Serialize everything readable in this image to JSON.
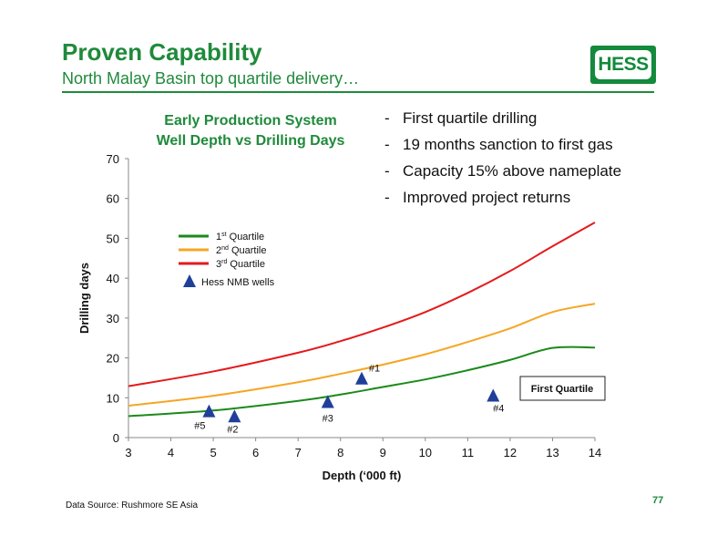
{
  "slide": {
    "title": "Proven Capability",
    "subtitle": "North Malay Basin top quartile delivery…",
    "logo_text": "HESS",
    "bullets": [
      {
        "dash": "-",
        "text": "First quartile drilling"
      },
      {
        "dash": "-",
        "text": "19 months sanction to first gas"
      },
      {
        "dash": "-",
        "text": "Capacity 15% above nameplate"
      },
      {
        "dash": "-",
        "text": "Improved project returns"
      }
    ],
    "source": "Data Source: Rushmore SE Asia",
    "page_number": "77",
    "brand_color": "#1f8a3b"
  },
  "chart_data": {
    "type": "scatter",
    "title_line1": "Early Production System",
    "title_line2": "Well Depth vs Drilling Days",
    "xlabel": "Depth (‘000 ft)",
    "ylabel": "Drilling days",
    "xlim": [
      3,
      14
    ],
    "ylim": [
      0,
      70
    ],
    "xticks": [
      "3",
      "4",
      "5",
      "6",
      "7",
      "8",
      "9",
      "10",
      "11",
      "12",
      "13",
      "14"
    ],
    "yticks": [
      "0",
      "10",
      "20",
      "30",
      "40",
      "50",
      "60",
      "70"
    ],
    "grid": false,
    "legend_position": "upper-left",
    "curves": [
      {
        "name": "1",
        "sup": "st",
        "suffix": " Quartile",
        "color": "#1a8a1a",
        "x": [
          3,
          5,
          7,
          8,
          9,
          10,
          11,
          12,
          13,
          14
        ],
        "y": [
          5.4,
          6.8,
          9.2,
          10.8,
          12.7,
          14.6,
          16.9,
          19.5,
          22.5,
          22.6
        ]
      },
      {
        "name": "2",
        "sup": "nd",
        "suffix": " Quartile",
        "color": "#f5a623",
        "x": [
          3,
          5,
          7,
          8,
          9,
          10,
          11,
          12,
          13,
          14
        ],
        "y": [
          8.0,
          10.5,
          13.9,
          16.0,
          18.3,
          20.9,
          24.0,
          27.4,
          31.5,
          33.6
        ]
      },
      {
        "name": "3",
        "sup": "rd",
        "suffix": " Quartile",
        "color": "#e41a1c",
        "x": [
          3,
          5,
          7,
          8,
          9,
          10,
          11,
          12,
          13,
          14
        ],
        "y": [
          12.9,
          16.6,
          21.3,
          24.2,
          27.6,
          31.5,
          36.3,
          41.8,
          48.0,
          54.0
        ]
      }
    ],
    "wells": {
      "name": "Hess NMB wells",
      "color": "#1f3f9a",
      "points": [
        {
          "label": "#1",
          "x": 8.5,
          "y": 14.7
        },
        {
          "label": "#2",
          "x": 5.5,
          "y": 5.2
        },
        {
          "label": "#3",
          "x": 7.7,
          "y": 8.8
        },
        {
          "label": "#4",
          "x": 11.6,
          "y": 10.4
        },
        {
          "label": "#5",
          "x": 4.9,
          "y": 6.5
        }
      ]
    },
    "annotation": "First Quartile"
  }
}
